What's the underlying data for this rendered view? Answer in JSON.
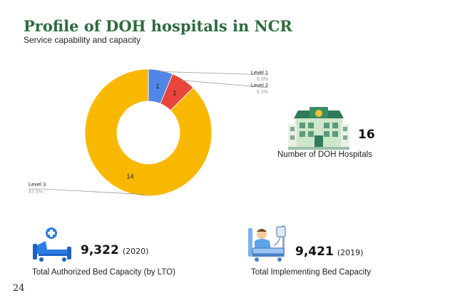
{
  "header": {
    "title": "Profile of DOH hospitals in NCR",
    "subtitle": "Service capability and capacity"
  },
  "chart_data": {
    "type": "pie",
    "categories": [
      "Level 1",
      "Level 2",
      "Level 3"
    ],
    "values": [
      1,
      1,
      14
    ],
    "percent_labels": [
      "6.3%",
      "6.3%",
      "87.5%"
    ],
    "value_labels": [
      "1",
      "1",
      "14"
    ],
    "colors": [
      "#4f86e8",
      "#e8453c",
      "#f9b800"
    ],
    "donut": true
  },
  "stats": {
    "hospitals": {
      "value": "16",
      "caption": "Number of DOH Hospitals"
    },
    "authorized_beds": {
      "value": "9,322",
      "year": "(2020)",
      "caption": "Total Authorized Bed Capacity (by LTO)"
    },
    "implementing_beds": {
      "value": "9,421",
      "year": "(2019)",
      "caption": "Total Implementing Bed Capacity"
    }
  },
  "page_number": "24",
  "icons": [
    "hospital-building-icon",
    "hospital-bed-icon",
    "patient-bed-icon"
  ]
}
